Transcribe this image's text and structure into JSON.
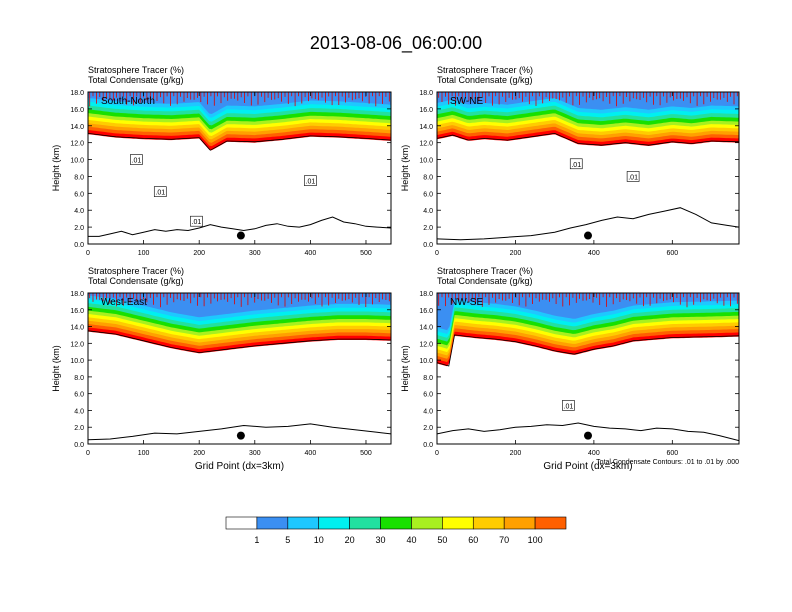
{
  "title": "2013-08-06_06:00:00",
  "colors": {
    "levels": [
      "#ffffff",
      "#3b8ff2",
      "#1ec8ff",
      "#00f0f0",
      "#22e0a0",
      "#18e000",
      "#a8f020",
      "#ffff00",
      "#ffcc00",
      "#ffa000",
      "#ff6000",
      "#ff0000"
    ],
    "frame": "#000000"
  },
  "chart_data": [
    {
      "type": "contour",
      "panel": "South-North",
      "title_lines": [
        "Stratosphere Tracer   (%)",
        "Total Condensate   (g/kg)"
      ],
      "label": "South-North",
      "ylabel": "Height (km)",
      "xlabel": "",
      "xlim": [
        0,
        545
      ],
      "ylim": [
        0,
        18
      ],
      "xticks": [
        0,
        100,
        200,
        300,
        400,
        500
      ],
      "yticks": [
        "0.0",
        "2.0",
        "4.0",
        "6.0",
        "8.0",
        "10.0",
        "12.0",
        "14.0",
        "16.0",
        "18.0"
      ],
      "terrain": [
        [
          0,
          0.9
        ],
        [
          20,
          0.9
        ],
        [
          40,
          1.2
        ],
        [
          60,
          1.5
        ],
        [
          80,
          1.1
        ],
        [
          100,
          1.4
        ],
        [
          120,
          1.7
        ],
        [
          140,
          1.5
        ],
        [
          160,
          1.7
        ],
        [
          180,
          1.6
        ],
        [
          200,
          1.9
        ],
        [
          220,
          2.3
        ],
        [
          240,
          2.0
        ],
        [
          260,
          1.8
        ],
        [
          280,
          1.6
        ],
        [
          300,
          1.8
        ],
        [
          320,
          2.2
        ],
        [
          340,
          2.4
        ],
        [
          360,
          2.1
        ],
        [
          380,
          2.0
        ],
        [
          400,
          2.3
        ],
        [
          420,
          2.8
        ],
        [
          440,
          3.2
        ],
        [
          460,
          2.6
        ],
        [
          480,
          2.4
        ],
        [
          500,
          2.1
        ],
        [
          520,
          2.0
        ],
        [
          545,
          1.9
        ]
      ],
      "tropopause": [
        [
          0,
          13.4
        ],
        [
          50,
          13.0
        ],
        [
          100,
          12.8
        ],
        [
          150,
          12.7
        ],
        [
          200,
          12.9
        ],
        [
          220,
          11.4
        ],
        [
          250,
          12.5
        ],
        [
          300,
          12.4
        ],
        [
          350,
          12.7
        ],
        [
          400,
          13.1
        ],
        [
          450,
          13.0
        ],
        [
          500,
          12.8
        ],
        [
          545,
          12.6
        ]
      ],
      "contour_labels": [
        ".01",
        ".01",
        ".01",
        ".01"
      ],
      "contour_label_positions": [
        [
          87,
          10.0
        ],
        [
          130,
          6.2
        ],
        [
          195,
          2.7
        ],
        [
          400,
          7.5
        ]
      ],
      "marker_x": 275,
      "marker_y": 1.0
    },
    {
      "type": "contour",
      "panel": "SW-NE",
      "title_lines": [
        "Stratosphere Tracer   (%)",
        "Total Condensate   (g/kg)"
      ],
      "label": "SW-NE",
      "ylabel": "Height (km)",
      "xlabel": "",
      "xlim": [
        0,
        770
      ],
      "ylim": [
        0,
        18
      ],
      "xticks": [
        0,
        200,
        400,
        600
      ],
      "yticks": [
        "0.0",
        "2.0",
        "4.0",
        "6.0",
        "8.0",
        "10.0",
        "12.0",
        "14.0",
        "16.0",
        "18.0"
      ],
      "terrain": [
        [
          0,
          0.6
        ],
        [
          60,
          0.5
        ],
        [
          120,
          0.6
        ],
        [
          180,
          0.8
        ],
        [
          240,
          1.0
        ],
        [
          300,
          1.4
        ],
        [
          340,
          1.9
        ],
        [
          380,
          2.3
        ],
        [
          420,
          2.8
        ],
        [
          460,
          3.2
        ],
        [
          500,
          3.0
        ],
        [
          540,
          3.5
        ],
        [
          580,
          3.9
        ],
        [
          620,
          4.3
        ],
        [
          660,
          3.5
        ],
        [
          700,
          2.5
        ],
        [
          740,
          2.2
        ],
        [
          770,
          2.0
        ]
      ],
      "tropopause": [
        [
          0,
          12.8
        ],
        [
          40,
          13.2
        ],
        [
          80,
          12.6
        ],
        [
          120,
          12.8
        ],
        [
          180,
          12.6
        ],
        [
          240,
          13.0
        ],
        [
          300,
          13.4
        ],
        [
          360,
          12.2
        ],
        [
          420,
          12.0
        ],
        [
          480,
          12.3
        ],
        [
          540,
          12.0
        ],
        [
          600,
          12.4
        ],
        [
          650,
          12.2
        ],
        [
          700,
          12.5
        ],
        [
          770,
          12.4
        ]
      ],
      "contour_labels": [
        ".01",
        ".01"
      ],
      "contour_label_positions": [
        [
          355,
          9.5
        ],
        [
          500,
          8.0
        ]
      ],
      "marker_x": 385,
      "marker_y": 1.0
    },
    {
      "type": "contour",
      "panel": "West-East",
      "title_lines": [
        "Stratosphere Tracer   (%)",
        "Total Condensate   (g/kg)"
      ],
      "label": "West-East",
      "ylabel": "Height (km)",
      "xlabel": "Grid Point (dx=3km)",
      "xlim": [
        0,
        545
      ],
      "ylim": [
        0,
        18
      ],
      "xticks": [
        0,
        100,
        200,
        300,
        400,
        500
      ],
      "yticks": [
        "0.0",
        "2.0",
        "4.0",
        "6.0",
        "8.0",
        "10.0",
        "12.0",
        "14.0",
        "16.0",
        "18.0"
      ],
      "terrain": [
        [
          0,
          0.5
        ],
        [
          40,
          0.6
        ],
        [
          80,
          0.9
        ],
        [
          120,
          1.3
        ],
        [
          160,
          1.2
        ],
        [
          200,
          1.5
        ],
        [
          240,
          1.8
        ],
        [
          280,
          2.2
        ],
        [
          320,
          2.0
        ],
        [
          360,
          2.1
        ],
        [
          400,
          2.4
        ],
        [
          440,
          2.0
        ],
        [
          480,
          1.7
        ],
        [
          520,
          1.4
        ],
        [
          545,
          1.2
        ]
      ],
      "tropopause": [
        [
          0,
          13.8
        ],
        [
          50,
          13.4
        ],
        [
          100,
          12.6
        ],
        [
          150,
          11.8
        ],
        [
          200,
          11.2
        ],
        [
          250,
          11.6
        ],
        [
          300,
          12.0
        ],
        [
          350,
          12.3
        ],
        [
          400,
          12.6
        ],
        [
          450,
          12.8
        ],
        [
          500,
          12.8
        ],
        [
          545,
          12.7
        ]
      ],
      "contour_labels": [],
      "contour_label_positions": [],
      "marker_x": 275,
      "marker_y": 1.0
    },
    {
      "type": "contour",
      "panel": "NW-SE",
      "title_lines": [
        "Stratosphere Tracer   (%)",
        "Total Condensate   (g/kg)"
      ],
      "label": "NW-SE",
      "ylabel": "Height (km)",
      "xlabel": "Grid Point (dx=3km)",
      "note": "Total Condensate Contours: .01 to .01 by .000",
      "xlim": [
        0,
        770
      ],
      "ylim": [
        0,
        18
      ],
      "xticks": [
        0,
        200,
        400,
        600
      ],
      "yticks": [
        "0.0",
        "2.0",
        "4.0",
        "6.0",
        "8.0",
        "10.0",
        "12.0",
        "14.0",
        "16.0",
        "18.0"
      ],
      "terrain": [
        [
          0,
          1.2
        ],
        [
          40,
          1.6
        ],
        [
          80,
          1.8
        ],
        [
          120,
          1.5
        ],
        [
          160,
          1.7
        ],
        [
          200,
          2.0
        ],
        [
          240,
          2.1
        ],
        [
          280,
          2.3
        ],
        [
          320,
          2.2
        ],
        [
          360,
          2.5
        ],
        [
          400,
          2.1
        ],
        [
          440,
          1.9
        ],
        [
          480,
          1.8
        ],
        [
          520,
          1.6
        ],
        [
          560,
          1.9
        ],
        [
          600,
          1.8
        ],
        [
          640,
          1.5
        ],
        [
          680,
          1.4
        ],
        [
          720,
          1.0
        ],
        [
          770,
          0.4
        ]
      ],
      "tropopause": [
        [
          0,
          10.0
        ],
        [
          30,
          9.6
        ],
        [
          45,
          13.3
        ],
        [
          100,
          13.0
        ],
        [
          150,
          12.8
        ],
        [
          200,
          12.5
        ],
        [
          250,
          12.0
        ],
        [
          300,
          11.4
        ],
        [
          350,
          11.0
        ],
        [
          400,
          11.6
        ],
        [
          450,
          12.0
        ],
        [
          500,
          12.6
        ],
        [
          550,
          12.8
        ],
        [
          600,
          13.0
        ],
        [
          700,
          13.1
        ],
        [
          770,
          13.2
        ]
      ],
      "contour_labels": [
        ".01"
      ],
      "contour_label_positions": [
        [
          335,
          4.6
        ]
      ],
      "marker_x": 385,
      "marker_y": 1.0
    }
  ],
  "colorbar": {
    "labels": [
      "1",
      "5",
      "10",
      "20",
      "30",
      "40",
      "50",
      "60",
      "70",
      "100"
    ]
  }
}
